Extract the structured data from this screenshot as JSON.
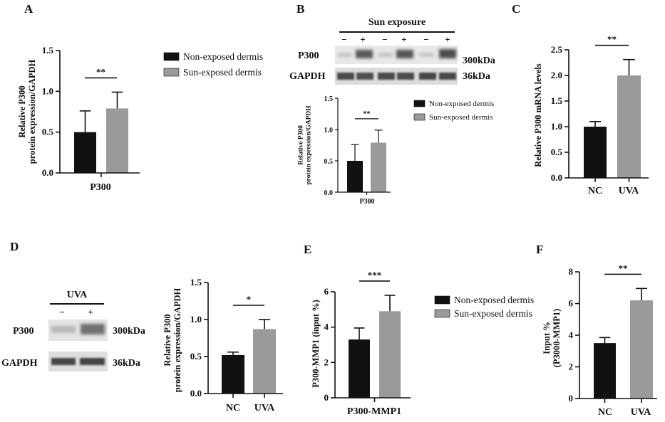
{
  "colors": {
    "group1": "#111111",
    "group2": "#9a9a9a",
    "text": "#111111"
  },
  "panels": {
    "A": {
      "letter": "A"
    },
    "B": {
      "letter": "B",
      "blot": {
        "header": "Sun exposure",
        "lanes": [
          "−",
          "+",
          "−",
          "+",
          "−",
          "+"
        ],
        "rows": [
          {
            "label": "P300",
            "size": "300kDa"
          },
          {
            "label": "GAPDH",
            "size": "36kDa"
          }
        ]
      }
    },
    "C": {
      "letter": "C"
    },
    "D": {
      "letter": "D",
      "blot": {
        "header": "UVA",
        "lanes": [
          "−",
          "+"
        ],
        "rows": [
          {
            "label": "P300",
            "size": "300kDa"
          },
          {
            "label": "GAPDH",
            "size": "36kDa"
          }
        ]
      }
    },
    "E": {
      "letter": "E"
    },
    "F": {
      "letter": "F"
    }
  },
  "chart_data": [
    {
      "id": "A",
      "type": "bar",
      "categories": [
        "P300"
      ],
      "series": [
        {
          "name": "Non-exposed dermis",
          "values": [
            0.5
          ],
          "error": [
            0.26
          ],
          "color": "#111111"
        },
        {
          "name": "Sun-exposed dermis",
          "values": [
            0.79
          ],
          "error": [
            0.2
          ],
          "color": "#9a9a9a"
        }
      ],
      "ylabel": [
        "Relative P300",
        "protein expression/GAPDH"
      ],
      "ylim": [
        0,
        1.5
      ],
      "yticks": [
        "0.0",
        "0.5",
        "1.0",
        "1.5"
      ],
      "significance": "**",
      "legend_entries": [
        "Non-exposed dermis",
        "Sun-exposed dermis"
      ]
    },
    {
      "id": "B",
      "type": "bar",
      "categories": [
        "P300"
      ],
      "series": [
        {
          "name": "Non-exposed dermis",
          "values": [
            0.5
          ],
          "error": [
            0.26
          ],
          "color": "#111111"
        },
        {
          "name": "Sun-exposed dermis",
          "values": [
            0.79
          ],
          "error": [
            0.2
          ],
          "color": "#9a9a9a"
        }
      ],
      "ylabel": [
        "Relative P300",
        "protein expression/GAPDH"
      ],
      "ylim": [
        0,
        1.5
      ],
      "yticks": [
        "0.0",
        "0.5",
        "1.0",
        "1.5"
      ],
      "significance": "**",
      "legend_entries": [
        "Non-exposed dermis",
        "Sun-exposed dermis"
      ]
    },
    {
      "id": "C",
      "type": "bar",
      "categories": [
        "NC",
        "UVA"
      ],
      "values": [
        1.0,
        2.0
      ],
      "error": [
        0.1,
        0.31
      ],
      "colors": [
        "#111111",
        "#9a9a9a"
      ],
      "ylabel": [
        "Relative P300 mRNA levels"
      ],
      "ylim": [
        0,
        2.5
      ],
      "yticks": [
        "0.0",
        "0.5",
        "1.0",
        "1.5",
        "2.0",
        "2.5"
      ],
      "significance": "**"
    },
    {
      "id": "D",
      "type": "bar",
      "categories": [
        "NC",
        "UVA"
      ],
      "values": [
        0.52,
        0.87
      ],
      "error": [
        0.04,
        0.13
      ],
      "colors": [
        "#111111",
        "#9a9a9a"
      ],
      "ylabel": [
        "Relative P300",
        "protein expression/GAPDH"
      ],
      "ylim": [
        0,
        1.5
      ],
      "yticks": [
        "0.0",
        "0.5",
        "1.0",
        "1.5"
      ],
      "significance": "*"
    },
    {
      "id": "E",
      "type": "bar",
      "categories": [
        "P300-MMP1"
      ],
      "series": [
        {
          "name": "Non-exposed dermis",
          "values": [
            3.3
          ],
          "error": [
            0.65
          ],
          "color": "#111111"
        },
        {
          "name": "Sun-exposed dermis",
          "values": [
            4.9
          ],
          "error": [
            0.9
          ],
          "color": "#9a9a9a"
        }
      ],
      "ylabel": [
        "P300-MMP1 (input %)"
      ],
      "ylim": [
        0,
        6
      ],
      "yticks": [
        "0",
        "2",
        "4",
        "6"
      ],
      "significance": "***",
      "legend_entries": [
        "Non-exposed dermis",
        "Sun-exposed dermis"
      ]
    },
    {
      "id": "F",
      "type": "bar",
      "categories": [
        "NC",
        "UVA"
      ],
      "values": [
        3.5,
        6.2
      ],
      "error": [
        0.35,
        0.75
      ],
      "colors": [
        "#111111",
        "#9a9a9a"
      ],
      "ylabel": [
        "Input %",
        "(P3000-MMP1)"
      ],
      "ylim": [
        0,
        8
      ],
      "yticks": [
        "0",
        "2",
        "4",
        "6",
        "8"
      ],
      "significance": "**"
    }
  ]
}
